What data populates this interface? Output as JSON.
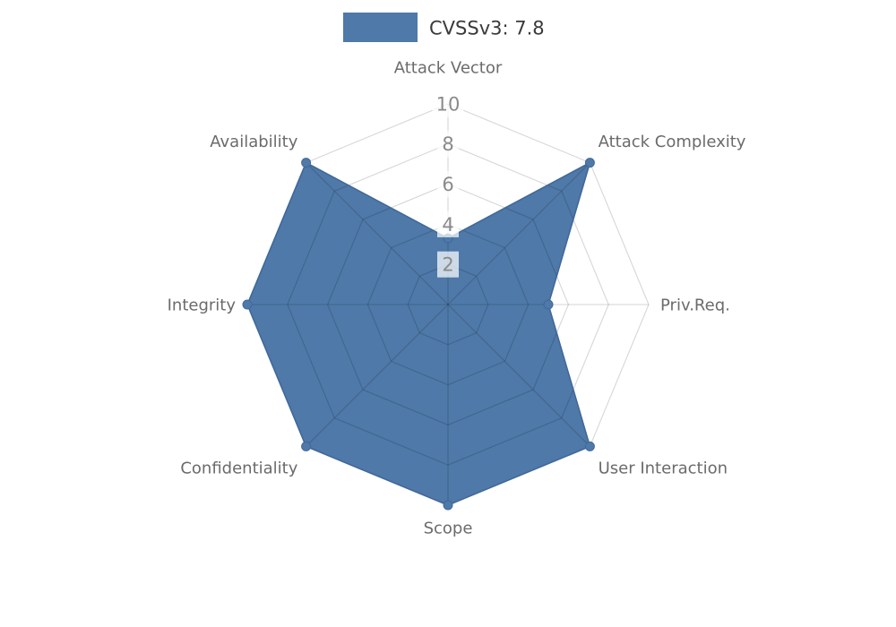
{
  "chart_data": {
    "type": "radar",
    "title": "CVSSv3: 7.8",
    "legend": {
      "label": "CVSSv3: 7.8",
      "swatch_color": "#4e79a8"
    },
    "axes": [
      {
        "label": "Attack Vector",
        "angle_deg": 90,
        "value": 3.3
      },
      {
        "label": "Attack Complexity",
        "angle_deg": 45,
        "value": 10
      },
      {
        "label": "Priv.Req.",
        "angle_deg": 0,
        "value": 5
      },
      {
        "label": "User Interaction",
        "angle_deg": -45,
        "value": 10
      },
      {
        "label": "Scope",
        "angle_deg": -90,
        "value": 10
      },
      {
        "label": "Confidentiality",
        "angle_deg": -135,
        "value": 10
      },
      {
        "label": "Integrity",
        "angle_deg": 180,
        "value": 10
      },
      {
        "label": "Availability",
        "angle_deg": 135,
        "value": 10
      }
    ],
    "radial_ticks": [
      2,
      4,
      6,
      8,
      10
    ],
    "rmax": 10,
    "grid": "on",
    "legend_position": "top-center",
    "colors": {
      "series_fill": "#4e79a8",
      "series_stroke": "#41689a",
      "grid_line": "rgba(0,0,0,0.16)",
      "axis_label": "#6b6b6b",
      "tick_label": "#8a8a8a",
      "tick_label_bg": "rgba(255,255,255,0.72)",
      "legend_text": "#3a3a3a",
      "background": "#ffffff"
    }
  }
}
